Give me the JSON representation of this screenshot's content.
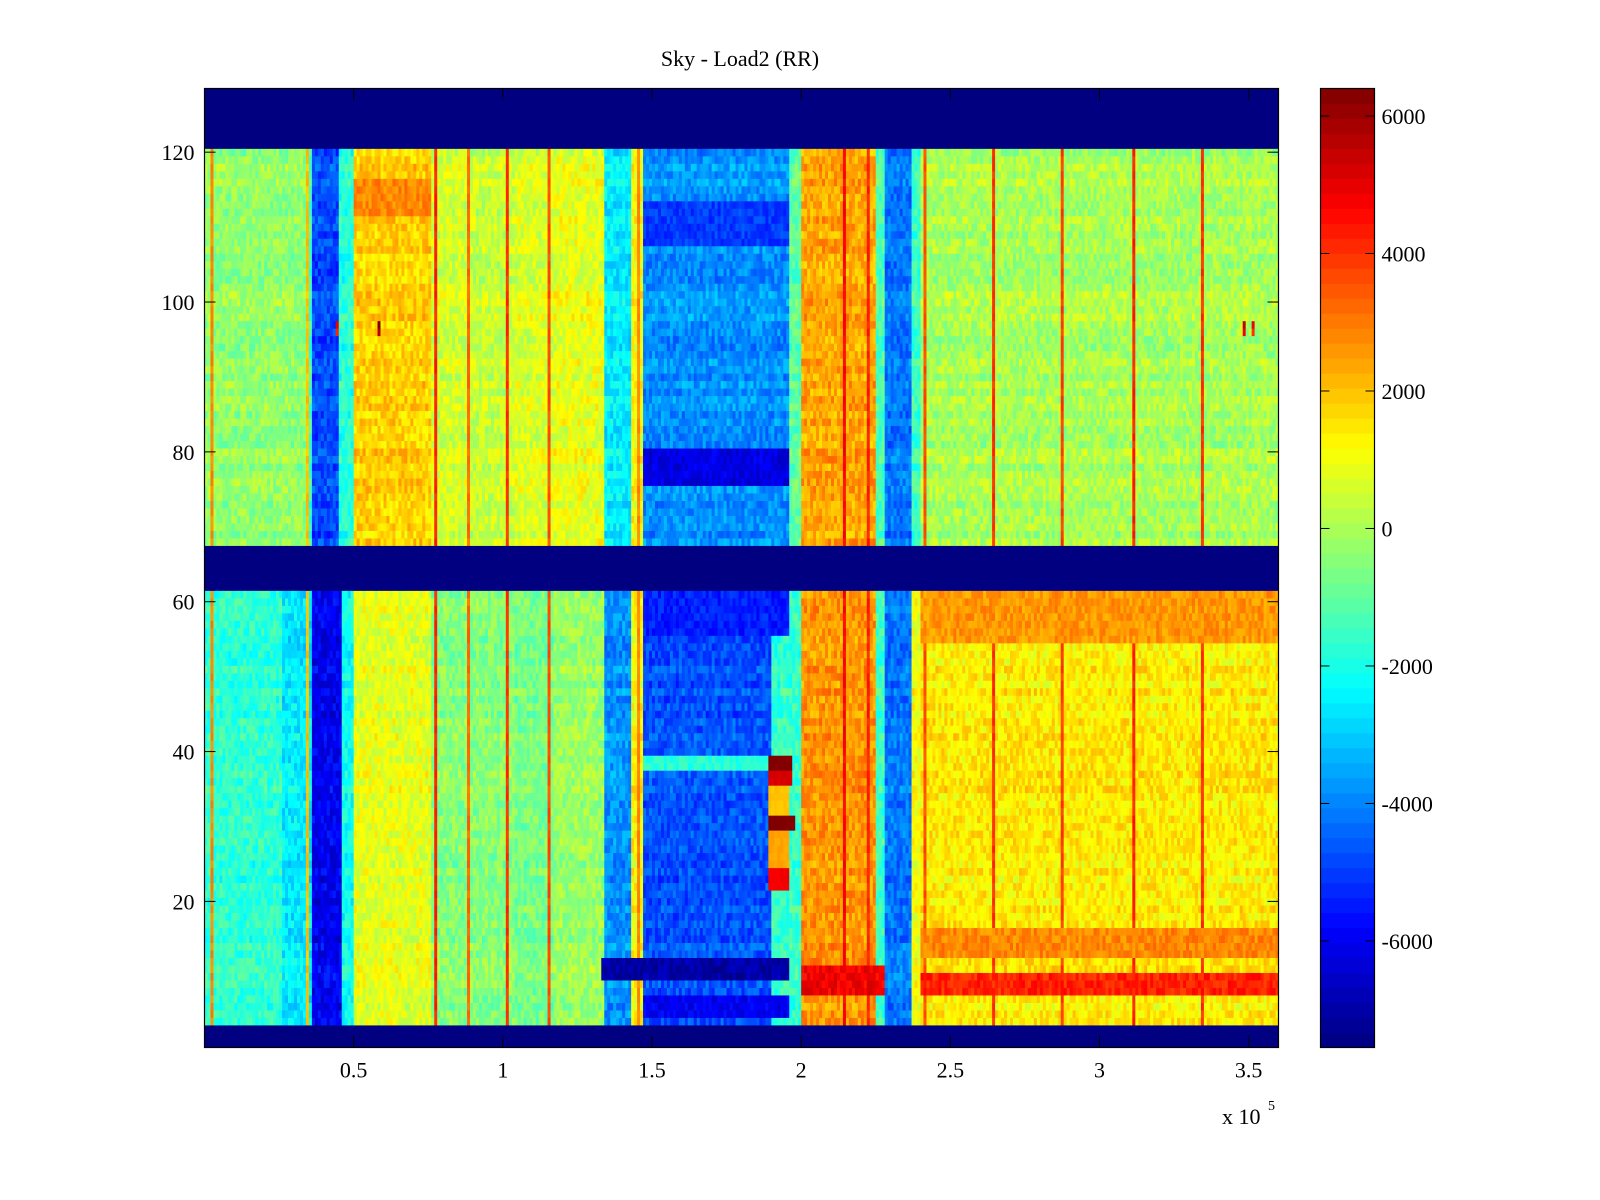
{
  "chart_data": {
    "type": "heatmap",
    "title": "Sky - Load2 (RR)",
    "xlabel": "",
    "ylabel": "",
    "x_multiplier_label": "x 10",
    "x_multiplier_exponent": "5",
    "xlim": [
      0,
      360000
    ],
    "ylim": [
      0.5,
      128.5
    ],
    "rows": 128,
    "colormap": "jet",
    "grid": false,
    "x_ticks": [
      {
        "value": 50000,
        "label": "0.5"
      },
      {
        "value": 100000,
        "label": "1"
      },
      {
        "value": 150000,
        "label": "1.5"
      },
      {
        "value": 200000,
        "label": "2"
      },
      {
        "value": 250000,
        "label": "2.5"
      },
      {
        "value": 300000,
        "label": "3"
      },
      {
        "value": 350000,
        "label": "3.5"
      }
    ],
    "y_ticks": [
      {
        "value": 20,
        "label": "20"
      },
      {
        "value": 40,
        "label": "40"
      },
      {
        "value": 60,
        "label": "60"
      },
      {
        "value": 80,
        "label": "80"
      },
      {
        "value": 100,
        "label": "100"
      },
      {
        "value": 120,
        "label": "120"
      }
    ],
    "colorbar": {
      "position": "right",
      "clim": [
        -7550,
        6400
      ],
      "ticks": [
        {
          "value": 6000,
          "label": "6000"
        },
        {
          "value": 4000,
          "label": "4000"
        },
        {
          "value": 2000,
          "label": "2000"
        },
        {
          "value": 0,
          "label": "0"
        },
        {
          "value": -2000,
          "label": "-2000"
        },
        {
          "value": -4000,
          "label": "-4000"
        },
        {
          "value": -6000,
          "label": "-6000"
        }
      ]
    },
    "masked_row_bands": [
      [
        121,
        128
      ],
      [
        62,
        67
      ],
      [
        1,
        3
      ]
    ],
    "mask_value": -7550,
    "column_profile_upper": [
      {
        "x0": 0,
        "x1": 34000,
        "value": -300
      },
      {
        "x0": 34000,
        "x1": 36000,
        "value": -1500
      },
      {
        "x0": 36000,
        "x1": 45000,
        "value": -4800
      },
      {
        "x0": 45000,
        "x1": 50000,
        "value": -1800
      },
      {
        "x0": 50000,
        "x1": 76000,
        "value": 1800
      },
      {
        "x0": 76000,
        "x1": 88000,
        "value": 600
      },
      {
        "x0": 88000,
        "x1": 104000,
        "value": 400
      },
      {
        "x0": 104000,
        "x1": 117000,
        "value": 700
      },
      {
        "x0": 117000,
        "x1": 134000,
        "value": 900
      },
      {
        "x0": 134000,
        "x1": 143000,
        "value": -2500
      },
      {
        "x0": 143000,
        "x1": 147000,
        "value": 1200
      },
      {
        "x0": 147000,
        "x1": 196000,
        "value": -3800
      },
      {
        "x0": 196000,
        "x1": 200000,
        "value": -1000
      },
      {
        "x0": 200000,
        "x1": 225000,
        "value": 2400
      },
      {
        "x0": 225000,
        "x1": 228000,
        "value": -1200
      },
      {
        "x0": 228000,
        "x1": 237000,
        "value": -4200
      },
      {
        "x0": 237000,
        "x1": 240000,
        "value": -1500
      },
      {
        "x0": 240000,
        "x1": 360000,
        "value": 0
      }
    ],
    "column_profile_lower": [
      {
        "x0": 0,
        "x1": 26000,
        "value": -1700
      },
      {
        "x0": 26000,
        "x1": 36000,
        "value": -2600
      },
      {
        "x0": 36000,
        "x1": 46000,
        "value": -6000
      },
      {
        "x0": 46000,
        "x1": 50000,
        "value": -2200
      },
      {
        "x0": 50000,
        "x1": 76000,
        "value": 800
      },
      {
        "x0": 76000,
        "x1": 104000,
        "value": -500
      },
      {
        "x0": 104000,
        "x1": 117000,
        "value": -700
      },
      {
        "x0": 117000,
        "x1": 134000,
        "value": -200
      },
      {
        "x0": 134000,
        "x1": 143000,
        "value": -3800
      },
      {
        "x0": 143000,
        "x1": 147000,
        "value": 1200
      },
      {
        "x0": 147000,
        "x1": 190000,
        "value": -4700
      },
      {
        "x0": 190000,
        "x1": 200000,
        "value": -1600
      },
      {
        "x0": 200000,
        "x1": 225000,
        "value": 2600
      },
      {
        "x0": 225000,
        "x1": 228000,
        "value": -1500
      },
      {
        "x0": 228000,
        "x1": 237000,
        "value": -4200
      },
      {
        "x0": 237000,
        "x1": 240000,
        "value": 1000
      },
      {
        "x0": 240000,
        "x1": 360000,
        "value": 1400
      }
    ],
    "vertical_stripes": [
      {
        "x": 2500,
        "value": 2800
      },
      {
        "x": 34500,
        "value": 2000
      },
      {
        "x": 77000,
        "value": 4200
      },
      {
        "x": 88500,
        "value": 3200
      },
      {
        "x": 101000,
        "value": 4000
      },
      {
        "x": 115500,
        "value": 3600
      },
      {
        "x": 145000,
        "value": 2800
      },
      {
        "x": 214500,
        "value": 4600
      },
      {
        "x": 222000,
        "value": 4200
      },
      {
        "x": 241000,
        "value": 3600
      },
      {
        "x": 264500,
        "value": 4000
      },
      {
        "x": 287000,
        "value": 3800
      },
      {
        "x": 311000,
        "value": 4200
      },
      {
        "x": 334000,
        "value": 4000
      }
    ],
    "row_features": [
      {
        "rows": [
          112,
          116
        ],
        "x0": 50000,
        "x1": 76000,
        "value": 2800
      },
      {
        "rows": [
          76,
          80
        ],
        "x0": 147000,
        "x1": 196000,
        "value": -6200
      },
      {
        "rows": [
          108,
          113
        ],
        "x0": 147000,
        "x1": 196000,
        "value": -5000
      },
      {
        "rows": [
          56,
          61
        ],
        "x0": 147000,
        "x1": 196000,
        "value": -5400
      },
      {
        "rows": [
          10,
          12
        ],
        "x0": 133000,
        "x1": 196000,
        "value": -7000
      },
      {
        "rows": [
          5,
          7
        ],
        "x0": 147000,
        "x1": 196000,
        "value": -6000
      },
      {
        "rows": [
          8,
          11
        ],
        "x0": 200000,
        "x1": 228000,
        "value": 4800
      },
      {
        "rows": [
          8,
          10
        ],
        "x0": 240000,
        "x1": 360000,
        "value": 4200
      },
      {
        "rows": [
          13,
          16
        ],
        "x0": 240000,
        "x1": 360000,
        "value": 2800
      },
      {
        "rows": [
          55,
          61
        ],
        "x0": 240000,
        "x1": 360000,
        "value": 2600
      },
      {
        "rows": [
          38,
          39
        ],
        "x0": 147000,
        "x1": 190000,
        "value": -1800
      }
    ],
    "anomaly_block": [
      {
        "rows": [
          38,
          39
        ],
        "x0": 189000,
        "x1": 197000,
        "value": 6400
      },
      {
        "rows": [
          36,
          37
        ],
        "x0": 189000,
        "x1": 197000,
        "value": 5200
      },
      {
        "rows": [
          30,
          31
        ],
        "x0": 189000,
        "x1": 198000,
        "value": 6400
      },
      {
        "rows": [
          22,
          24
        ],
        "x0": 189000,
        "x1": 196000,
        "value": 4800
      },
      {
        "rows": [
          25,
          29
        ],
        "x0": 189000,
        "x1": 196000,
        "value": 2400
      },
      {
        "rows": [
          32,
          35
        ],
        "x0": 189000,
        "x1": 196000,
        "value": 2000
      }
    ],
    "point_spikes": [
      {
        "row": 97,
        "x": 58000,
        "value": 6400
      },
      {
        "row": 97,
        "x": 44000,
        "value": 5000
      },
      {
        "row": 97,
        "x": 348000,
        "value": 5600
      },
      {
        "row": 97,
        "x": 351000,
        "value": 4800
      }
    ]
  }
}
